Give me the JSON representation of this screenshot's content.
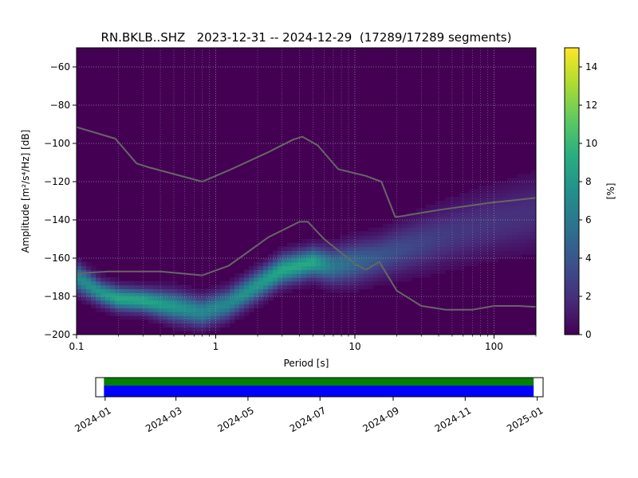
{
  "title": "RN.BKLB..SHZ   2023-12-31 -- 2024-12-29  (17289/17289 segments)",
  "colors": {
    "background_cell": "#440154",
    "noise_model_line": "#666666",
    "grid": "#aaaaaa",
    "coverage_green": "#008000",
    "coverage_blue": "#0000ff",
    "colormap": "viridis"
  },
  "chart_data": [
    {
      "type": "heatmap",
      "title": "RN.BKLB..SHZ   2023-12-31 -- 2024-12-29  (17289/17289 segments)",
      "xlabel": "Period [s]",
      "ylabel": "Amplitude [m²/s⁴/Hz] [dB]",
      "x_scale": "log",
      "xlim": [
        0.1,
        200
      ],
      "ylim": [
        -200,
        -50
      ],
      "x_ticks": [
        {
          "value": 0.1,
          "label": "0.1"
        },
        {
          "value": 1,
          "label": "1"
        },
        {
          "value": 10,
          "label": "10"
        },
        {
          "value": 100,
          "label": "100"
        }
      ],
      "y_ticks": [
        {
          "value": -60,
          "label": "−60"
        },
        {
          "value": -80,
          "label": "−80"
        },
        {
          "value": -100,
          "label": "−100"
        },
        {
          "value": -120,
          "label": "−120"
        },
        {
          "value": -140,
          "label": "−140"
        },
        {
          "value": -160,
          "label": "−160"
        },
        {
          "value": -180,
          "label": "−180"
        },
        {
          "value": -200,
          "label": "−200"
        }
      ],
      "grid": true,
      "colorbar": {
        "label": "[%]",
        "range": [
          0,
          15
        ],
        "ticks": [
          {
            "value": 0,
            "label": "0"
          },
          {
            "value": 2,
            "label": "2"
          },
          {
            "value": 4,
            "label": "4"
          },
          {
            "value": 6,
            "label": "6"
          },
          {
            "value": 8,
            "label": "8"
          },
          {
            "value": 10,
            "label": "10"
          },
          {
            "value": 12,
            "label": "12"
          },
          {
            "value": 14,
            "label": "14"
          }
        ]
      },
      "density_ridge": {
        "x": [
          0.1,
          0.15,
          0.2,
          0.3,
          0.5,
          0.8,
          1.2,
          2,
          3,
          5,
          7,
          10,
          15,
          20,
          30,
          50,
          100,
          200
        ],
        "mode_db": [
          -170,
          -178,
          -181,
          -182,
          -185,
          -188,
          -184,
          -174,
          -166,
          -162,
          -164,
          -162,
          -159,
          -156,
          -152,
          -147,
          -141,
          -136
        ],
        "spread_db": [
          5,
          4,
          4,
          4,
          5,
          5,
          5,
          5,
          5,
          5,
          6,
          7,
          7,
          8,
          9,
          10,
          11,
          12
        ],
        "peak_percent": [
          7,
          8,
          9,
          9,
          8,
          7,
          7,
          8,
          9,
          9,
          6,
          5,
          4,
          3.5,
          3,
          2.5,
          2.2,
          2
        ]
      },
      "series": [
        {
          "name": "",
          "x": [
            0.1,
            0.19,
            0.27,
            0.33,
            0.8,
            1.25,
            2.4,
            3.6,
            4.2,
            5.4,
            7.6,
            12,
            15.5,
            19.5,
            22,
            32,
            43,
            68,
            95,
            200
          ],
          "y": [
            -91.5,
            -97.5,
            -110.5,
            -112.5,
            -120,
            -114,
            -104.5,
            -98,
            -96.5,
            -101,
            -113.5,
            -117,
            -120,
            -138.5,
            -138,
            -136,
            -134.5,
            -132.5,
            -131,
            -128.5
          ]
        },
        {
          "name": "",
          "x": [
            0.1,
            0.17,
            0.4,
            0.8,
            1.24,
            2.4,
            4,
            4.6,
            6,
            10,
            12,
            15,
            20,
            30,
            45,
            70,
            100,
            150,
            200
          ],
          "y": [
            -168,
            -167,
            -167,
            -169,
            -164,
            -149,
            -141,
            -141,
            -150,
            -163,
            -166,
            -162,
            -177,
            -185,
            -187,
            -187,
            -185,
            -185,
            -185.5
          ]
        }
      ]
    },
    {
      "type": "timeline",
      "x_ticks": [
        "2024-01",
        "2024-03",
        "2024-05",
        "2024-07",
        "2024-09",
        "2024-11",
        "2025-01"
      ],
      "coverage": [
        {
          "start": "2023-12-31",
          "end": "2024-12-29",
          "color": "green"
        },
        {
          "start": "2023-12-31",
          "end": "2024-12-29",
          "color": "blue"
        }
      ]
    }
  ]
}
